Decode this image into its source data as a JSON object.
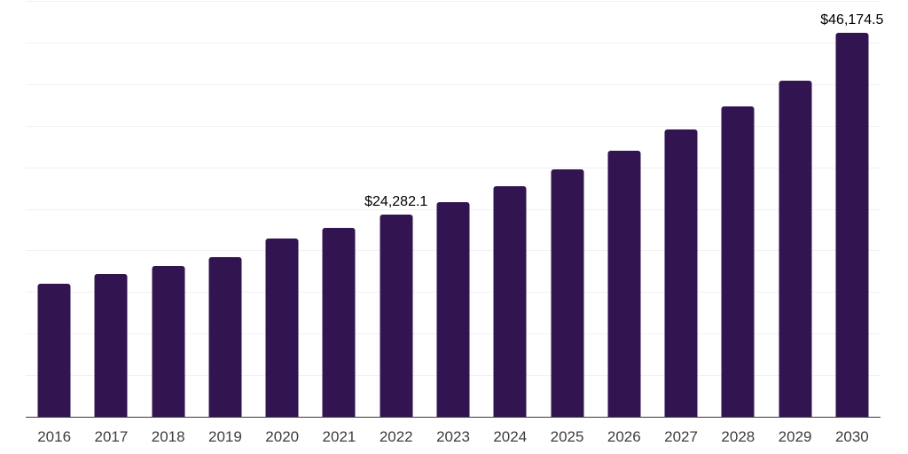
{
  "chart_data": {
    "type": "bar",
    "title": "",
    "xlabel": "",
    "ylabel": "",
    "categories": [
      "2016",
      "2017",
      "2018",
      "2019",
      "2020",
      "2021",
      "2022",
      "2023",
      "2024",
      "2025",
      "2026",
      "2027",
      "2028",
      "2029",
      "2030"
    ],
    "values": [
      16000,
      17200,
      18150,
      19150,
      21450,
      22750,
      24282.1,
      25750,
      27700,
      29750,
      31950,
      34550,
      37300,
      40450,
      46174.5
    ],
    "value_labels": {
      "2022": "$24,282.1",
      "2030": "$46,174.5"
    },
    "ylim": [
      0,
      50000
    ],
    "gridline_step": 5000,
    "grid": "horizontal",
    "legend": "none",
    "colors": {
      "bar": "#321450",
      "gridline": "#f1f1f1",
      "axis_line": "#3a3a3a",
      "tick_label": "#3d3d3d",
      "value_label": "#000000",
      "background": "#ffffff"
    }
  }
}
